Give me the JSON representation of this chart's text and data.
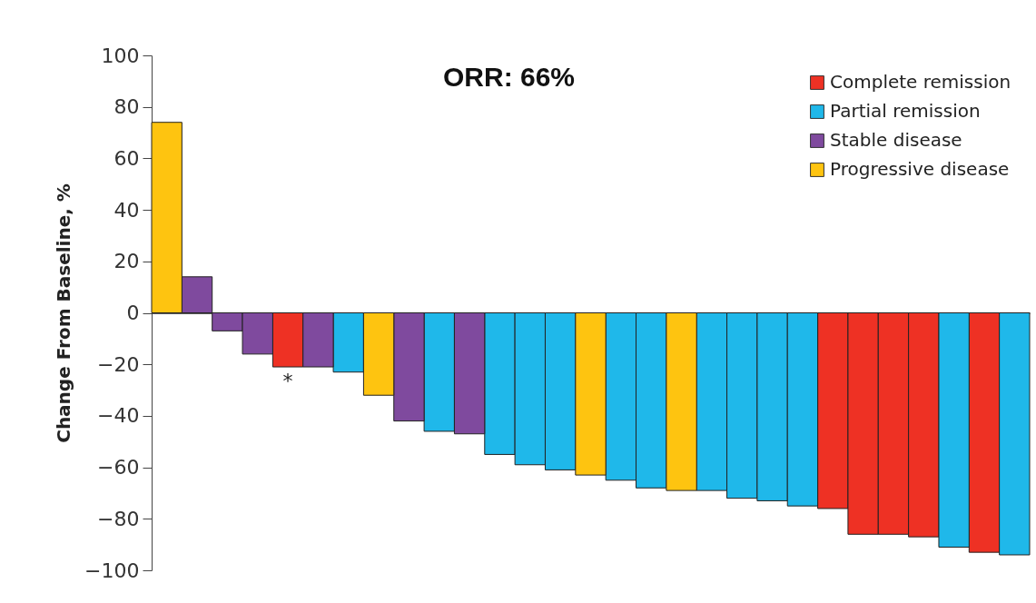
{
  "chart_data": {
    "type": "bar",
    "title": "ORR: 66%",
    "ylabel": "Change From Baseline, %",
    "categories": [
      null,
      null,
      null,
      null,
      null,
      null,
      null,
      null,
      null,
      null,
      null,
      null,
      null,
      null,
      null,
      null,
      null,
      null,
      null,
      null,
      null,
      null,
      null,
      null,
      null,
      null,
      null,
      null,
      null
    ],
    "series": [
      {
        "name": "Complete remission",
        "color": "#ee3124",
        "values": [
          null,
          null,
          null,
          null,
          -21,
          null,
          null,
          null,
          null,
          null,
          null,
          null,
          null,
          null,
          null,
          null,
          null,
          null,
          null,
          null,
          null,
          null,
          -76,
          -86,
          -86,
          -87,
          null,
          -93,
          null
        ],
        "value_labels": [
          null,
          null,
          null,
          null,
          "*",
          null,
          null,
          null,
          null,
          null,
          null,
          null,
          null,
          null,
          null,
          null,
          null,
          null,
          null,
          null,
          null,
          null,
          null,
          null,
          null,
          null,
          null,
          null,
          null
        ]
      },
      {
        "name": "Partial remission",
        "color": "#1fb8ea",
        "values": [
          null,
          null,
          null,
          null,
          null,
          null,
          -23,
          null,
          null,
          -46,
          null,
          -55,
          -59,
          -61,
          null,
          -65,
          -68,
          null,
          -69,
          -72,
          -73,
          -75,
          null,
          null,
          null,
          null,
          -91,
          null,
          -94
        ]
      },
      {
        "name": "Stable disease",
        "color": "#7f4a9e",
        "values": [
          null,
          14,
          -7,
          -16,
          null,
          -21,
          null,
          null,
          -42,
          null,
          -47,
          null,
          null,
          null,
          null,
          null,
          null,
          null,
          null,
          null,
          null,
          null,
          null,
          null,
          null,
          null,
          null,
          null,
          null
        ]
      },
      {
        "name": "Progressive disease",
        "color": "#fec410",
        "values": [
          74,
          null,
          null,
          null,
          null,
          null,
          null,
          -32,
          null,
          null,
          null,
          null,
          null,
          null,
          -63,
          null,
          null,
          -69,
          null,
          null,
          null,
          null,
          null,
          null,
          null,
          null,
          null,
          null,
          null
        ]
      }
    ],
    "ylim": [
      -100,
      100
    ],
    "yticks": [
      -100,
      -80,
      -60,
      -40,
      -20,
      0,
      20,
      40,
      60,
      80,
      100
    ],
    "legend": "top right"
  }
}
